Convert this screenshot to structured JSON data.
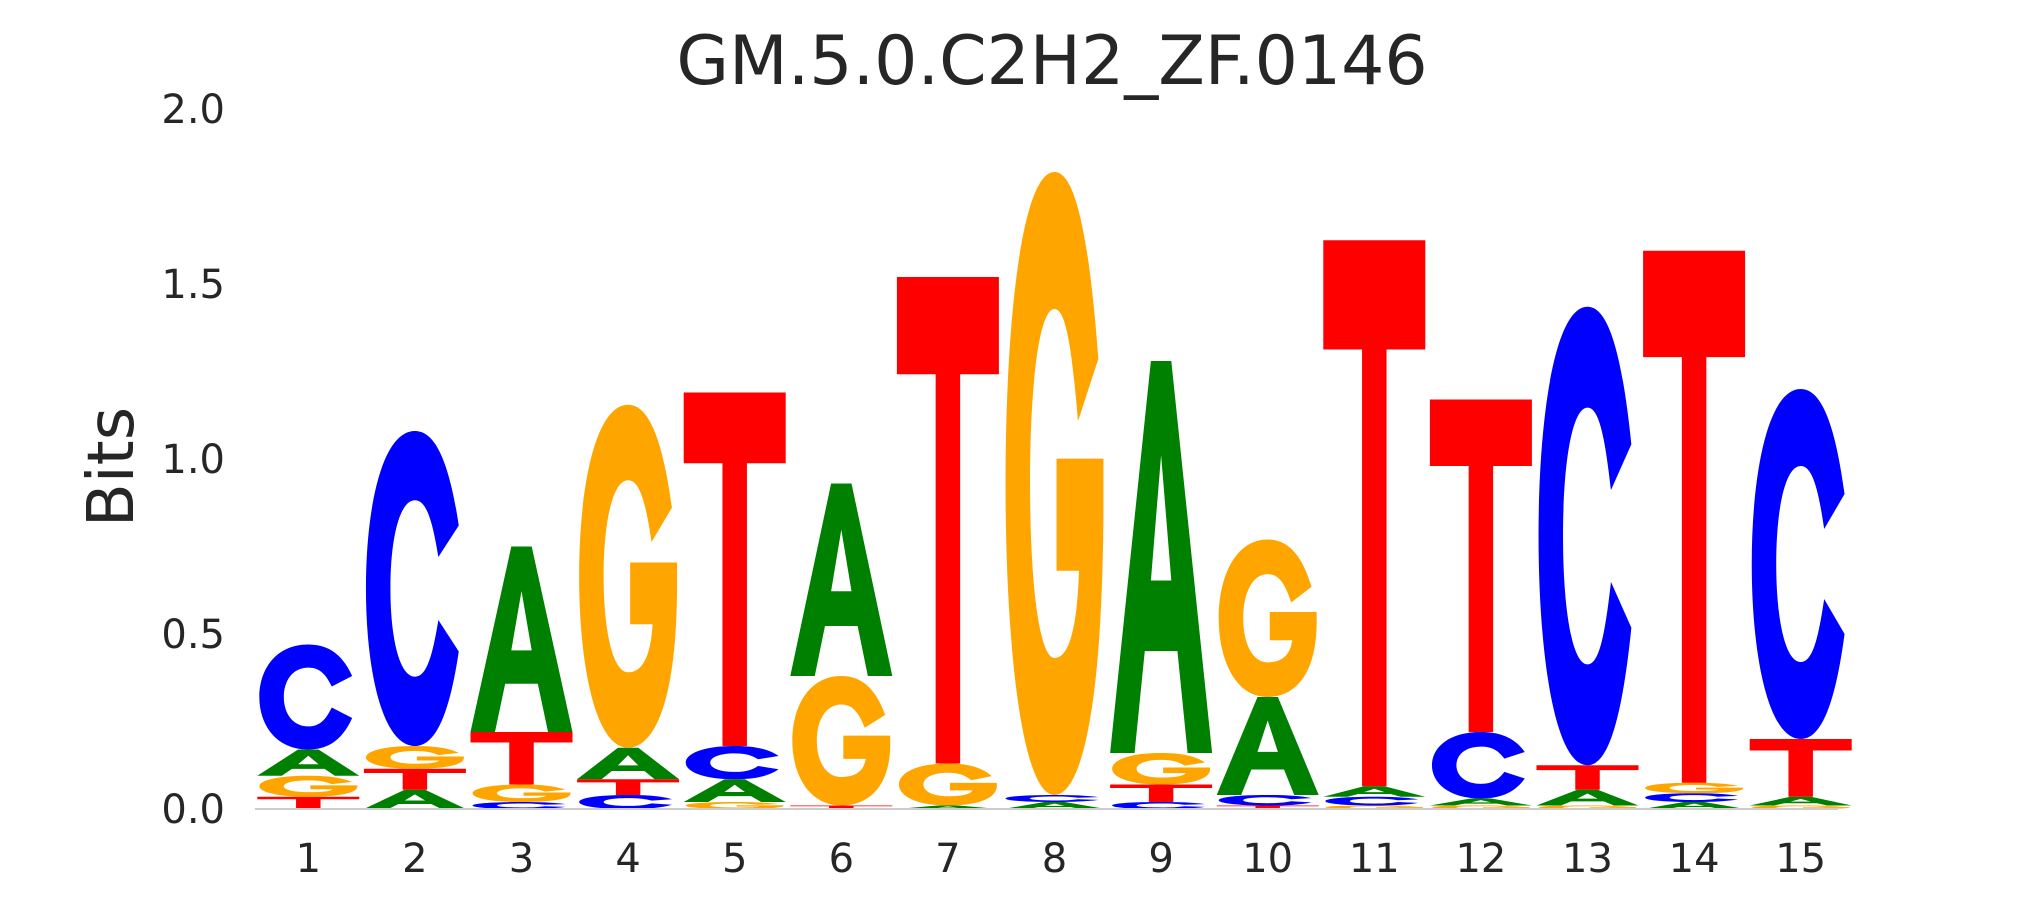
{
  "chart_data": {
    "type": "sequence-logo",
    "title": "GM.5.0.C2H2_ZF.0146",
    "ylabel": "Bits",
    "xlabel": "",
    "ylim": [
      0,
      2.0
    ],
    "yticks": [
      "0.0",
      "0.5",
      "1.0",
      "1.5",
      "2.0"
    ],
    "positions": [
      "1",
      "2",
      "3",
      "4",
      "5",
      "6",
      "7",
      "8",
      "9",
      "10",
      "11",
      "12",
      "13",
      "14",
      "15"
    ],
    "colors": {
      "A": "#008000",
      "C": "#0000ff",
      "G": "#ffa500",
      "T": "#ff0000"
    },
    "stacks": [
      [
        {
          "base": "T",
          "bits": 0.035
        },
        {
          "base": "G",
          "bits": 0.06
        },
        {
          "base": "A",
          "bits": 0.075
        },
        {
          "base": "C",
          "bits": 0.3
        }
      ],
      [
        {
          "base": "A",
          "bits": 0.055
        },
        {
          "base": "T",
          "bits": 0.06
        },
        {
          "base": "G",
          "bits": 0.065
        },
        {
          "base": "C",
          "bits": 0.9
        }
      ],
      [
        {
          "base": "C",
          "bits": 0.02
        },
        {
          "base": "G",
          "bits": 0.05
        },
        {
          "base": "T",
          "bits": 0.15
        },
        {
          "base": "A",
          "bits": 0.53
        }
      ],
      [
        {
          "base": "C",
          "bits": 0.04
        },
        {
          "base": "T",
          "bits": 0.045
        },
        {
          "base": "A",
          "bits": 0.09
        },
        {
          "base": "G",
          "bits": 0.98
        }
      ],
      [
        {
          "base": "G",
          "bits": 0.02
        },
        {
          "base": "A",
          "bits": 0.065
        },
        {
          "base": "C",
          "bits": 0.095
        },
        {
          "base": "T",
          "bits": 1.01
        }
      ],
      [
        {
          "base": "T",
          "bits": 0.01
        },
        {
          "base": "G",
          "bits": 0.37
        },
        {
          "base": "A",
          "bits": 0.55
        }
      ],
      [
        {
          "base": "A",
          "bits": 0.01
        },
        {
          "base": "G",
          "bits": 0.12
        },
        {
          "base": "T",
          "bits": 1.39
        }
      ],
      [
        {
          "base": "A",
          "bits": 0.02
        },
        {
          "base": "C",
          "bits": 0.02
        },
        {
          "base": "G",
          "bits": 1.78
        }
      ],
      [
        {
          "base": "C",
          "bits": 0.02
        },
        {
          "base": "T",
          "bits": 0.05
        },
        {
          "base": "G",
          "bits": 0.09
        },
        {
          "base": "A",
          "bits": 1.12
        }
      ],
      [
        {
          "base": "T",
          "bits": 0.01
        },
        {
          "base": "C",
          "bits": 0.03
        },
        {
          "base": "A",
          "bits": 0.28
        },
        {
          "base": "G",
          "bits": 0.45
        }
      ],
      [
        {
          "base": "G",
          "bits": 0.01
        },
        {
          "base": "C",
          "bits": 0.025
        },
        {
          "base": "A",
          "bits": 0.03
        },
        {
          "base": "T",
          "bits": 1.56
        }
      ],
      [
        {
          "base": "G",
          "bits": 0.01
        },
        {
          "base": "A",
          "bits": 0.02
        },
        {
          "base": "C",
          "bits": 0.19
        },
        {
          "base": "T",
          "bits": 0.95
        }
      ],
      [
        {
          "base": "G",
          "bits": 0.01
        },
        {
          "base": "A",
          "bits": 0.045
        },
        {
          "base": "T",
          "bits": 0.07
        },
        {
          "base": "C",
          "bits": 1.31
        }
      ],
      [
        {
          "base": "A",
          "bits": 0.02
        },
        {
          "base": "C",
          "bits": 0.025
        },
        {
          "base": "G",
          "bits": 0.03
        },
        {
          "base": "T",
          "bits": 1.52
        }
      ],
      [
        {
          "base": "G",
          "bits": 0.01
        },
        {
          "base": "A",
          "bits": 0.025
        },
        {
          "base": "T",
          "bits": 0.165
        },
        {
          "base": "C",
          "bits": 1.0
        }
      ]
    ]
  }
}
